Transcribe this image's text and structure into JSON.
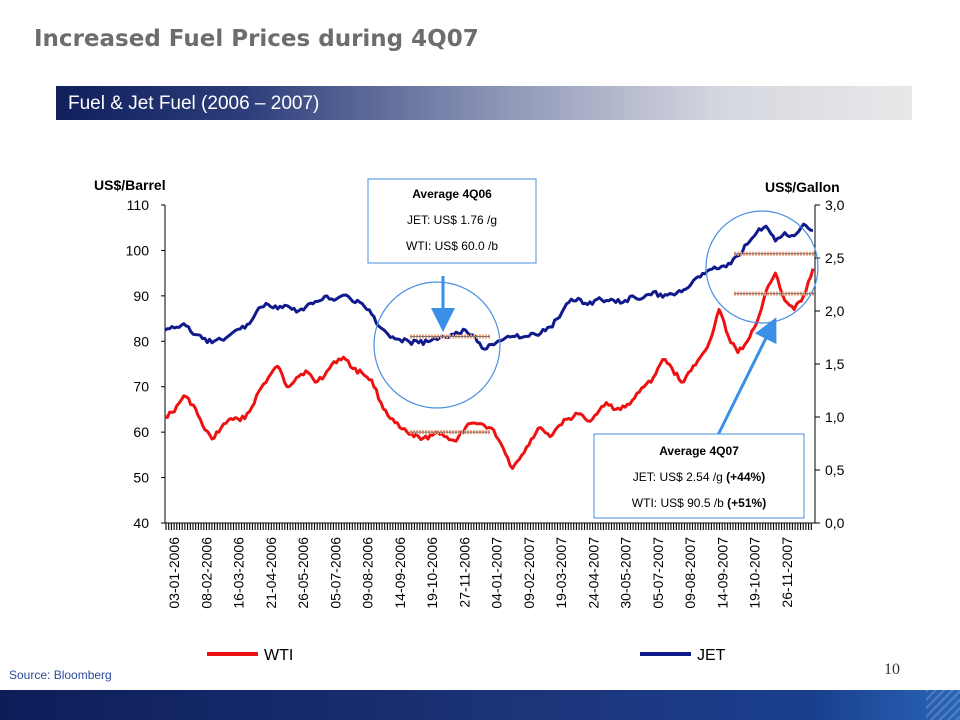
{
  "title": "Increased Fuel Prices during 4Q07",
  "banner": {
    "text": "Fuel & Jet Fuel (2006 – 2007)"
  },
  "source": "Source: Bloomberg",
  "page_number": "10",
  "colors": {
    "wti": "#ee1111",
    "jet": "#111a8c",
    "banner_start": "#0f1f5c",
    "circle": "#4a8fe0",
    "arrow": "#3a8fe6"
  },
  "callouts": {
    "q06": {
      "title": "Average 4Q06",
      "line1": "JET: US$ 1.76 /g",
      "line2": "WTI: US$ 60.0 /b"
    },
    "q07": {
      "title": "Average 4Q07",
      "line1": "JET: US$ 2.54 /g ",
      "line1_bold": "(+44%)",
      "line2": "WTI: US$ 90.5 /b ",
      "line2_bold": "(+51%)"
    }
  },
  "chart_data": {
    "type": "line",
    "left_axis": {
      "label": "US$/Barrel",
      "ylim": [
        40,
        110
      ],
      "ticks": [
        "40",
        "50",
        "60",
        "70",
        "80",
        "90",
        "100",
        "110"
      ]
    },
    "right_axis": {
      "label": "US$/Gallon",
      "ylim": [
        0,
        3
      ],
      "ticks": [
        "0,0",
        "0,5",
        "1,0",
        "1,5",
        "2,0",
        "2,5",
        "3,0"
      ]
    },
    "x_tick_labels": [
      "03-01-2006",
      "08-02-2006",
      "16-03-2006",
      "21-04-2006",
      "26-05-2006",
      "05-07-2006",
      "09-08-2006",
      "14-09-2006",
      "19-10-2006",
      "27-11-2006",
      "04-01-2007",
      "09-02-2007",
      "19-03-2007",
      "24-04-2007",
      "30-05-2007",
      "05-07-2007",
      "09-08-2007",
      "14-09-2007",
      "19-10-2007",
      "26-11-2007"
    ],
    "series": [
      {
        "name": "WTI",
        "axis": "left",
        "color": "#ee1111",
        "values": [
          63.4,
          64.5,
          68.0,
          66.0,
          61.5,
          58.5,
          61.0,
          63.0,
          62.5,
          64.5,
          69.0,
          72.0,
          74.5,
          70.0,
          72.0,
          73.5,
          71.0,
          72.5,
          75.5,
          76.5,
          74.0,
          73.0,
          71.5,
          66.5,
          63.0,
          61.0,
          59.5,
          59.0,
          58.5,
          60.0,
          59.0,
          58.0,
          61.0,
          62.0,
          61.5,
          60.5,
          56.5,
          52.0,
          55.0,
          58.5,
          61.0,
          59.0,
          61.5,
          63.0,
          64.0,
          62.5,
          64.0,
          66.5,
          65.0,
          65.5,
          67.5,
          70.0,
          72.0,
          76.0,
          74.0,
          71.0,
          73.5,
          76.5,
          80.0,
          87.0,
          81.0,
          77.5,
          80.0,
          84.0,
          91.0,
          95.0,
          89.0,
          87.0,
          90.0,
          96.0
        ]
      },
      {
        "name": "JET",
        "axis": "right",
        "color": "#111a8c",
        "values": [
          1.82,
          1.84,
          1.88,
          1.78,
          1.74,
          1.7,
          1.73,
          1.78,
          1.83,
          1.88,
          2.03,
          2.06,
          2.02,
          2.05,
          1.99,
          2.04,
          2.09,
          2.14,
          2.1,
          2.15,
          2.09,
          2.07,
          1.97,
          1.84,
          1.75,
          1.73,
          1.71,
          1.7,
          1.71,
          1.73,
          1.75,
          1.8,
          1.82,
          1.76,
          1.64,
          1.68,
          1.73,
          1.76,
          1.75,
          1.79,
          1.79,
          1.85,
          1.94,
          2.08,
          2.12,
          2.06,
          2.11,
          2.1,
          2.08,
          2.1,
          2.13,
          2.13,
          2.18,
          2.13,
          2.16,
          2.18,
          2.25,
          2.32,
          2.39,
          2.4,
          2.45,
          2.52,
          2.63,
          2.74,
          2.8,
          2.66,
          2.74,
          2.71,
          2.82,
          2.76
        ]
      }
    ],
    "average_markers": [
      {
        "series": "WTI",
        "period": "4Q06",
        "value": 60.0
      },
      {
        "series": "JET",
        "period": "4Q06",
        "value": 1.76
      },
      {
        "series": "WTI",
        "period": "4Q07",
        "value": 90.5
      },
      {
        "series": "JET",
        "period": "4Q07",
        "value": 2.54
      }
    ],
    "legend": {
      "position": "bottom",
      "entries": [
        "WTI",
        "JET"
      ]
    }
  }
}
